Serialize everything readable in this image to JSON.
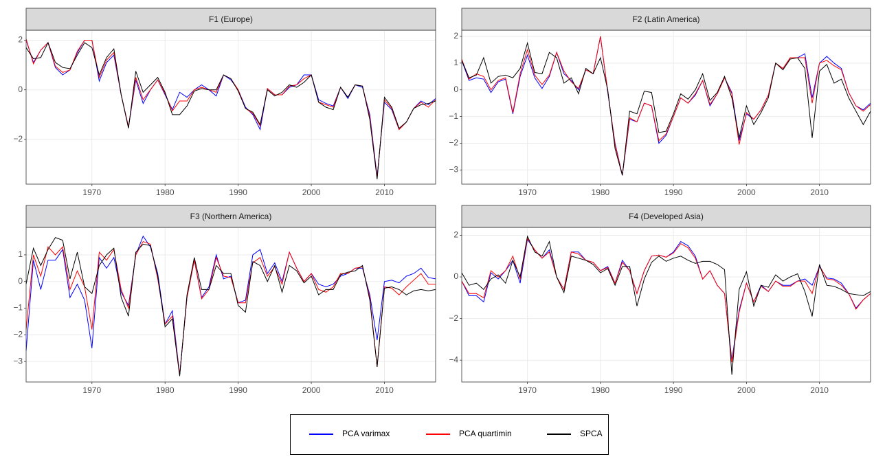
{
  "chart_data": [
    {
      "type": "line",
      "title": "F1 (Europe)",
      "x": [
        1961,
        1962,
        1963,
        1964,
        1965,
        1966,
        1967,
        1968,
        1969,
        1970,
        1971,
        1972,
        1973,
        1974,
        1975,
        1976,
        1977,
        1978,
        1979,
        1980,
        1981,
        1982,
        1983,
        1984,
        1985,
        1986,
        1987,
        1988,
        1989,
        1990,
        1991,
        1992,
        1993,
        1994,
        1995,
        1996,
        1997,
        1998,
        1999,
        2000,
        2001,
        2002,
        2003,
        2004,
        2005,
        2006,
        2007,
        2008,
        2009,
        2010,
        2011,
        2012,
        2013,
        2014,
        2015,
        2016,
        2017
      ],
      "xlim": [
        1961,
        2017
      ],
      "xticks": [
        1970,
        1980,
        1990,
        2000,
        2010
      ],
      "ylim": [
        -3.8,
        2.4
      ],
      "yticks": [
        {
          "value": -2,
          "label": "−2"
        },
        0,
        2
      ],
      "grid": true,
      "series": [
        {
          "name": "PCA varimax",
          "color": "#0000ff",
          "values": [
            2.0,
            1.1,
            1.6,
            1.9,
            0.9,
            0.6,
            0.8,
            1.5,
            2.0,
            2.0,
            0.35,
            1.1,
            1.4,
            -0.2,
            -1.5,
            0.4,
            -0.55,
            0.0,
            0.4,
            -0.2,
            -0.8,
            -0.1,
            -0.3,
            0.0,
            0.2,
            0.0,
            -0.25,
            0.6,
            0.4,
            0.0,
            -0.7,
            -1.0,
            -1.6,
            0.05,
            -0.2,
            -0.2,
            0.1,
            0.2,
            0.6,
            0.6,
            -0.4,
            -0.55,
            -0.65,
            0.1,
            -0.35,
            0.2,
            0.1,
            -1.0,
            -3.5,
            -0.5,
            -0.8,
            -1.6,
            -1.3,
            -0.75,
            -0.45,
            -0.6,
            -0.35
          ]
        },
        {
          "name": "PCA quartimin",
          "color": "#ff0000",
          "values": [
            2.05,
            1.05,
            1.6,
            1.9,
            0.95,
            0.7,
            0.8,
            1.55,
            2.0,
            2.0,
            0.5,
            1.2,
            1.5,
            -0.2,
            -1.5,
            0.5,
            -0.4,
            0.0,
            0.4,
            -0.15,
            -0.85,
            -0.45,
            -0.45,
            0.0,
            0.1,
            0.0,
            -0.1,
            0.6,
            0.45,
            0.0,
            -0.75,
            -0.95,
            -1.45,
            0.05,
            -0.2,
            -0.2,
            0.15,
            0.2,
            0.45,
            0.6,
            -0.5,
            -0.6,
            -0.7,
            0.1,
            -0.3,
            0.2,
            0.15,
            -1.1,
            -3.55,
            -0.4,
            -0.75,
            -1.6,
            -1.3,
            -0.75,
            -0.5,
            -0.7,
            -0.4
          ]
        },
        {
          "name": "SPCA",
          "color": "#000000",
          "values": [
            1.7,
            1.25,
            1.3,
            1.9,
            1.1,
            0.9,
            0.85,
            1.4,
            1.9,
            1.7,
            0.6,
            1.3,
            1.65,
            -0.2,
            -1.55,
            0.75,
            -0.1,
            0.2,
            0.5,
            -0.1,
            -1.0,
            -1.0,
            -0.65,
            -0.05,
            0.05,
            0.0,
            0.0,
            0.6,
            0.45,
            -0.05,
            -0.75,
            -0.9,
            -1.4,
            0.0,
            -0.25,
            -0.1,
            0.2,
            0.1,
            0.3,
            0.6,
            -0.5,
            -0.7,
            -0.8,
            0.1,
            -0.3,
            0.2,
            0.15,
            -1.2,
            -3.6,
            -0.3,
            -0.7,
            -1.55,
            -1.3,
            -0.75,
            -0.6,
            -0.55,
            -0.45
          ]
        }
      ]
    },
    {
      "type": "line",
      "title": "F2 (Latin America)",
      "x": [
        1961,
        1962,
        1963,
        1964,
        1965,
        1966,
        1967,
        1968,
        1969,
        1970,
        1971,
        1972,
        1973,
        1974,
        1975,
        1976,
        1977,
        1978,
        1979,
        1980,
        1981,
        1982,
        1983,
        1984,
        1985,
        1986,
        1987,
        1988,
        1989,
        1990,
        1991,
        1992,
        1993,
        1994,
        1995,
        1996,
        1997,
        1998,
        1999,
        2000,
        2001,
        2002,
        2003,
        2004,
        2005,
        2006,
        2007,
        2008,
        2009,
        2010,
        2011,
        2012,
        2013,
        2014,
        2015,
        2016,
        2017
      ],
      "xlim": [
        1961,
        2017
      ],
      "xticks": [
        1970,
        1980,
        1990,
        2000,
        2010
      ],
      "ylim": [
        -3.53,
        2.23
      ],
      "yticks": [
        {
          "value": -3,
          "label": "−3"
        },
        {
          "value": -2,
          "label": "−2"
        },
        {
          "value": -1,
          "label": "−1"
        },
        0,
        1,
        2
      ],
      "grid": true,
      "series": [
        {
          "name": "PCA varimax",
          "color": "#0000ff",
          "values": [
            1.1,
            0.35,
            0.45,
            0.4,
            -0.1,
            0.3,
            0.4,
            -0.9,
            0.5,
            1.3,
            0.45,
            0.05,
            0.5,
            1.4,
            0.6,
            0.35,
            0.0,
            0.75,
            0.6,
            2.0,
            -0.1,
            -2.0,
            -3.2,
            -1.1,
            -1.2,
            -0.5,
            -0.6,
            -2.0,
            -1.7,
            -1.0,
            -0.3,
            -0.5,
            -0.2,
            0.35,
            -0.6,
            -0.15,
            0.45,
            -0.1,
            -1.9,
            -0.9,
            -1.1,
            -0.75,
            -0.2,
            1.0,
            0.8,
            1.2,
            1.2,
            1.35,
            -0.3,
            1.0,
            1.25,
            1.0,
            0.8,
            -0.1,
            -0.6,
            -0.75,
            -0.5
          ]
        },
        {
          "name": "PCA quartimin",
          "color": "#ff0000",
          "values": [
            1.15,
            0.4,
            0.6,
            0.5,
            0.0,
            0.35,
            0.45,
            -0.85,
            0.6,
            1.5,
            0.55,
            0.2,
            0.55,
            1.4,
            0.7,
            0.3,
            0.05,
            0.75,
            0.6,
            2.0,
            -0.05,
            -2.05,
            -3.2,
            -1.05,
            -1.2,
            -0.5,
            -0.6,
            -1.9,
            -1.65,
            -1.0,
            -0.3,
            -0.5,
            -0.15,
            0.35,
            -0.55,
            -0.15,
            0.45,
            -0.15,
            -2.05,
            -0.85,
            -1.1,
            -0.75,
            -0.2,
            1.0,
            0.8,
            1.2,
            1.2,
            1.2,
            -0.5,
            1.0,
            1.1,
            0.9,
            0.75,
            -0.1,
            -0.6,
            -0.8,
            -0.55
          ]
        },
        {
          "name": "SPCA",
          "color": "#000000",
          "values": [
            1.1,
            0.45,
            0.55,
            1.2,
            0.25,
            0.5,
            0.55,
            0.45,
            0.8,
            1.75,
            0.65,
            0.6,
            1.4,
            1.2,
            0.25,
            0.45,
            -0.15,
            0.8,
            0.6,
            1.2,
            0.0,
            -2.2,
            -3.2,
            -0.8,
            -0.9,
            -0.05,
            -0.1,
            -1.6,
            -1.55,
            -0.9,
            -0.15,
            -0.35,
            0.0,
            0.6,
            -0.4,
            -0.1,
            0.5,
            -0.3,
            -1.8,
            -0.6,
            -1.3,
            -0.85,
            -0.3,
            1.0,
            0.75,
            1.15,
            1.2,
            0.8,
            -1.8,
            0.7,
            0.95,
            0.25,
            0.4,
            -0.3,
            -0.8,
            -1.3,
            -0.8
          ]
        }
      ]
    },
    {
      "type": "line",
      "title": "F3 (Northern America)",
      "x": [
        1961,
        1962,
        1963,
        1964,
        1965,
        1966,
        1967,
        1968,
        1969,
        1970,
        1971,
        1972,
        1973,
        1974,
        1975,
        1976,
        1977,
        1978,
        1979,
        1980,
        1981,
        1982,
        1983,
        1984,
        1985,
        1986,
        1987,
        1988,
        1989,
        1990,
        1991,
        1992,
        1993,
        1994,
        1995,
        1996,
        1997,
        1998,
        1999,
        2000,
        2001,
        2002,
        2003,
        2004,
        2005,
        2006,
        2007,
        2008,
        2009,
        2010,
        2011,
        2012,
        2013,
        2014,
        2015,
        2016,
        2017
      ],
      "xlim": [
        1961,
        2017
      ],
      "xticks": [
        1970,
        1980,
        1990,
        2000,
        2010
      ],
      "ylim": [
        -3.77,
        2.03
      ],
      "yticks": [
        {
          "value": -3,
          "label": "−3"
        },
        {
          "value": -2,
          "label": "−2"
        },
        {
          "value": -1,
          "label": "−1"
        },
        0,
        1
      ],
      "grid": true,
      "series": [
        {
          "name": "PCA varimax",
          "color": "#0000ff",
          "values": [
            -2.6,
            0.8,
            -0.3,
            0.8,
            0.8,
            1.2,
            -0.6,
            -0.1,
            -0.7,
            -2.5,
            0.9,
            0.5,
            0.9,
            -0.4,
            -0.9,
            1.0,
            1.7,
            1.3,
            0.3,
            -1.6,
            -1.1,
            -3.5,
            -0.6,
            0.8,
            -0.6,
            -0.2,
            1.0,
            0.1,
            0.2,
            -0.8,
            -0.7,
            1.0,
            1.2,
            0.3,
            0.7,
            0.0,
            1.1,
            0.5,
            0.0,
            0.3,
            -0.1,
            -0.2,
            -0.1,
            0.2,
            0.3,
            0.5,
            0.5,
            -0.5,
            -2.2,
            0.0,
            0.05,
            -0.05,
            0.2,
            0.3,
            0.5,
            0.15,
            0.1
          ]
        },
        {
          "name": "PCA quartimin",
          "color": "#ff0000",
          "values": [
            -1.8,
            1.0,
            0.2,
            1.3,
            1.0,
            1.3,
            -0.3,
            0.4,
            -0.2,
            -1.8,
            1.1,
            0.8,
            1.2,
            -0.3,
            -1.0,
            1.0,
            1.5,
            1.4,
            0.1,
            -1.6,
            -1.3,
            -3.5,
            -0.6,
            0.8,
            -0.65,
            -0.3,
            0.9,
            0.2,
            0.15,
            -0.8,
            -0.8,
            0.7,
            0.9,
            0.2,
            0.55,
            -0.1,
            1.1,
            0.5,
            0.0,
            0.3,
            -0.3,
            -0.4,
            -0.2,
            0.3,
            0.3,
            0.5,
            0.55,
            -0.6,
            -3.2,
            -0.2,
            -0.25,
            -0.5,
            -0.2,
            0.05,
            0.3,
            -0.1,
            -0.1
          ]
        },
        {
          "name": "SPCA",
          "color": "#000000",
          "values": [
            -0.1,
            1.25,
            0.6,
            1.2,
            1.65,
            1.55,
            0.1,
            1.1,
            -0.2,
            -0.45,
            0.6,
            1.0,
            1.25,
            -0.6,
            -1.3,
            1.1,
            1.4,
            1.35,
            0.2,
            -1.7,
            -1.4,
            -3.55,
            -0.5,
            0.9,
            -0.3,
            -0.3,
            0.6,
            0.3,
            0.3,
            -0.9,
            -1.15,
            0.75,
            0.6,
            0.0,
            0.6,
            -0.4,
            0.6,
            0.4,
            -0.05,
            0.2,
            -0.5,
            -0.3,
            -0.3,
            0.25,
            0.35,
            0.4,
            0.6,
            -0.7,
            -3.2,
            -0.25,
            -0.2,
            -0.3,
            -0.5,
            -0.35,
            -0.3,
            -0.35,
            -0.3
          ]
        }
      ]
    },
    {
      "type": "line",
      "title": "F4 (Developed Asia)",
      "x": [
        1961,
        1962,
        1963,
        1964,
        1965,
        1966,
        1967,
        1968,
        1969,
        1970,
        1971,
        1972,
        1973,
        1974,
        1975,
        1976,
        1977,
        1978,
        1979,
        1980,
        1981,
        1982,
        1983,
        1984,
        1985,
        1986,
        1987,
        1988,
        1989,
        1990,
        1991,
        1992,
        1993,
        1994,
        1995,
        1996,
        1997,
        1998,
        1999,
        2000,
        2001,
        2002,
        2003,
        2004,
        2005,
        2006,
        2007,
        2008,
        2009,
        2010,
        2011,
        2012,
        2013,
        2014,
        2015,
        2016,
        2017
      ],
      "xlim": [
        1961,
        2017
      ],
      "xticks": [
        1970,
        1980,
        1990,
        2000,
        2010
      ],
      "ylim": [
        -5.05,
        2.38
      ],
      "yticks": [
        {
          "value": -4,
          "label": "−4"
        },
        {
          "value": -2,
          "label": "−2"
        },
        0,
        2
      ],
      "grid": true,
      "series": [
        {
          "name": "PCA varimax",
          "color": "#0000ff",
          "values": [
            -0.2,
            -0.9,
            -0.9,
            -1.2,
            0.2,
            -0.1,
            0.3,
            0.8,
            -0.3,
            1.8,
            1.3,
            0.9,
            1.3,
            0.0,
            -0.6,
            1.2,
            1.2,
            0.8,
            0.7,
            0.3,
            0.5,
            -0.3,
            0.8,
            0.3,
            -0.8,
            0.3,
            1.0,
            1.05,
            0.95,
            1.2,
            1.7,
            1.5,
            1.0,
            -0.1,
            0.3,
            -0.4,
            -0.8,
            -4.0,
            -1.6,
            -0.3,
            -1.2,
            -0.4,
            -0.7,
            -0.2,
            -0.4,
            -0.4,
            -0.2,
            -0.1,
            -0.4,
            0.5,
            -0.05,
            -0.1,
            -0.3,
            -0.8,
            -1.5,
            -1.1,
            -0.8
          ]
        },
        {
          "name": "PCA quartimin",
          "color": "#ff0000",
          "values": [
            -0.2,
            -0.8,
            -0.8,
            -1.0,
            0.3,
            0.0,
            0.3,
            1.0,
            -0.1,
            1.85,
            1.3,
            0.9,
            1.2,
            0.0,
            -0.6,
            1.2,
            1.1,
            0.8,
            0.7,
            0.3,
            0.45,
            -0.3,
            0.7,
            0.3,
            -0.8,
            0.3,
            1.0,
            1.05,
            0.95,
            1.15,
            1.6,
            1.4,
            0.9,
            -0.1,
            0.3,
            -0.4,
            -0.8,
            -4.1,
            -1.7,
            -0.3,
            -1.2,
            -0.45,
            -0.7,
            -0.2,
            -0.45,
            -0.45,
            -0.2,
            -0.2,
            -0.8,
            0.55,
            -0.1,
            -0.15,
            -0.4,
            -0.8,
            -1.55,
            -1.1,
            -0.8
          ]
        },
        {
          "name": "SPCA",
          "color": "#000000",
          "values": [
            0.2,
            -0.4,
            -0.3,
            -0.6,
            -0.1,
            0.1,
            -0.3,
            0.8,
            0.0,
            1.95,
            1.2,
            1.0,
            1.7,
            0.0,
            -0.75,
            1.0,
            0.9,
            0.8,
            0.6,
            0.2,
            0.4,
            -0.4,
            0.5,
            0.5,
            -1.4,
            -0.1,
            0.7,
            1.0,
            0.75,
            0.9,
            1.0,
            0.8,
            0.65,
            0.75,
            0.75,
            0.6,
            0.35,
            -4.7,
            -0.6,
            0.25,
            -1.4,
            -0.4,
            -0.5,
            0.1,
            -0.2,
            0.0,
            0.15,
            -0.7,
            -1.9,
            0.6,
            -0.4,
            -0.45,
            -0.6,
            -0.8,
            -0.85,
            -0.9,
            -0.7
          ]
        }
      ]
    }
  ]
}
